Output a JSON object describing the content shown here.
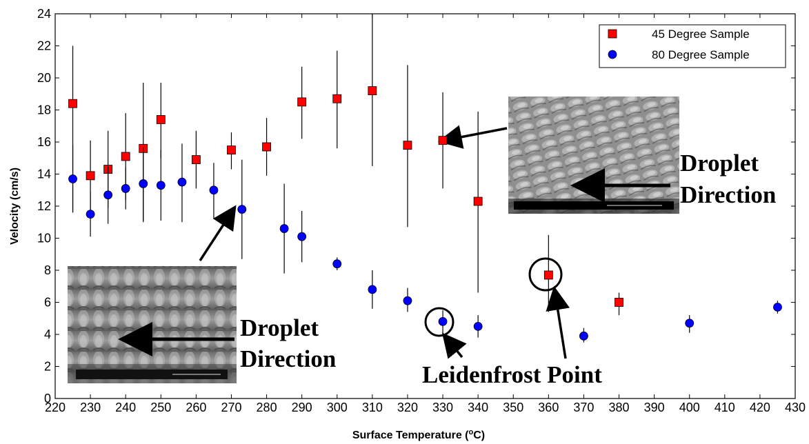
{
  "chart_data": {
    "type": "scatter",
    "xlabel": "Surface Temperature (",
    "xlabel_sup": "o",
    "xlabel_unit": "C)",
    "ylabel": "Velocity (cm/s)",
    "xlim": [
      220,
      430
    ],
    "ylim": [
      0,
      24
    ],
    "xticks": [
      220,
      230,
      240,
      250,
      260,
      270,
      280,
      290,
      300,
      310,
      320,
      330,
      340,
      350,
      360,
      370,
      380,
      390,
      400,
      410,
      420,
      430
    ],
    "yticks": [
      0,
      2,
      4,
      6,
      8,
      10,
      12,
      14,
      16,
      18,
      20,
      22,
      24
    ],
    "legend_position": "top-right",
    "series": [
      {
        "name": "45 Degree Sample",
        "color": "#ff0000",
        "marker": "square",
        "points": [
          {
            "x": 225,
            "y": 18.4,
            "lo": 11.6,
            "hi": 22.0
          },
          {
            "x": 230,
            "y": 13.9,
            "lo": 11.6,
            "hi": 16.1
          },
          {
            "x": 235,
            "y": 14.3,
            "lo": 11.9,
            "hi": 16.7
          },
          {
            "x": 240,
            "y": 15.1,
            "lo": 12.4,
            "hi": 17.8
          },
          {
            "x": 245,
            "y": 15.6,
            "lo": 11.0,
            "hi": 19.7
          },
          {
            "x": 250,
            "y": 17.4,
            "lo": 15.0,
            "hi": 19.7
          },
          {
            "x": 260,
            "y": 14.9,
            "lo": 13.1,
            "hi": 16.7
          },
          {
            "x": 270,
            "y": 15.5,
            "lo": 14.3,
            "hi": 16.6
          },
          {
            "x": 280,
            "y": 15.7,
            "lo": 13.9,
            "hi": 17.5
          },
          {
            "x": 290,
            "y": 18.5,
            "lo": 16.2,
            "hi": 20.7
          },
          {
            "x": 300,
            "y": 18.7,
            "lo": 15.6,
            "hi": 21.7
          },
          {
            "x": 310,
            "y": 19.2,
            "lo": 14.5,
            "hi": 24.0
          },
          {
            "x": 320,
            "y": 15.8,
            "lo": 10.7,
            "hi": 20.8
          },
          {
            "x": 330,
            "y": 16.1,
            "lo": 13.1,
            "hi": 19.1
          },
          {
            "x": 340,
            "y": 12.3,
            "lo": 6.6,
            "hi": 17.9
          },
          {
            "x": 360,
            "y": 7.7,
            "lo": 5.4,
            "hi": 10.2
          },
          {
            "x": 380,
            "y": 6.0,
            "lo": 5.2,
            "hi": 6.6
          }
        ]
      },
      {
        "name": "80 Degree Sample",
        "color": "#0000ff",
        "marker": "circle",
        "points": [
          {
            "x": 225,
            "y": 13.7,
            "lo": 11.6,
            "hi": 15.8
          },
          {
            "x": 230,
            "y": 11.5,
            "lo": 10.1,
            "hi": 12.9
          },
          {
            "x": 235,
            "y": 12.7,
            "lo": 10.9,
            "hi": 14.5
          },
          {
            "x": 240,
            "y": 13.1,
            "lo": 11.8,
            "hi": 14.4
          },
          {
            "x": 245,
            "y": 13.4,
            "lo": 11.1,
            "hi": 15.7
          },
          {
            "x": 250,
            "y": 13.3,
            "lo": 11.1,
            "hi": 15.5
          },
          {
            "x": 256,
            "y": 13.5,
            "lo": 11.0,
            "hi": 15.9
          },
          {
            "x": 265,
            "y": 13.0,
            "lo": 11.2,
            "hi": 14.7
          },
          {
            "x": 273,
            "y": 11.8,
            "lo": 8.7,
            "hi": 14.9
          },
          {
            "x": 285,
            "y": 10.6,
            "lo": 7.8,
            "hi": 13.4
          },
          {
            "x": 290,
            "y": 10.1,
            "lo": 8.5,
            "hi": 11.7
          },
          {
            "x": 300,
            "y": 8.4,
            "lo": 8.0,
            "hi": 8.8
          },
          {
            "x": 310,
            "y": 6.8,
            "lo": 5.6,
            "hi": 8.0
          },
          {
            "x": 320,
            "y": 6.1,
            "lo": 5.4,
            "hi": 6.9
          },
          {
            "x": 330,
            "y": 4.8,
            "lo": 4.0,
            "hi": 5.5
          },
          {
            "x": 340,
            "y": 4.5,
            "lo": 3.8,
            "hi": 5.2
          },
          {
            "x": 370,
            "y": 3.9,
            "lo": 3.5,
            "hi": 4.4
          },
          {
            "x": 400,
            "y": 4.7,
            "lo": 4.1,
            "hi": 5.2
          },
          {
            "x": 425,
            "y": 5.7,
            "lo": 5.3,
            "hi": 6.1
          }
        ]
      }
    ],
    "annotations": {
      "droplet_direction_line1": "Droplet",
      "droplet_direction_line2": "Direction",
      "leidenfrost_point": "Leidenfrost Point"
    }
  }
}
